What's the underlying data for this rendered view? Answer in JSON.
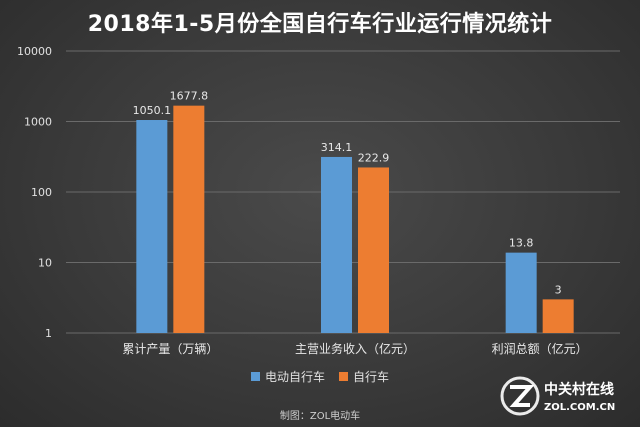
{
  "chart_data": {
    "type": "bar",
    "title": "2018年1-5月份全国自行车行业运行情况统计",
    "categories": [
      "累计产量（万辆）",
      "主营业务收入（亿元）",
      "利润总额（亿元）"
    ],
    "series": [
      {
        "name": "电动自行车",
        "values": [
          1050.1,
          314.1,
          13.8
        ],
        "color": "#5b9bd5"
      },
      {
        "name": "自行车",
        "values": [
          1677.8,
          222.9,
          3
        ],
        "color": "#ed7d31"
      }
    ],
    "y_scale": "log",
    "ylim": [
      1,
      10000
    ],
    "y_ticks": [
      "1",
      "10",
      "100",
      "1000",
      "10000"
    ],
    "grid": true,
    "legend_position": "bottom",
    "data_labels": [
      "1050.1",
      "1677.8",
      "314.1",
      "222.9",
      "13.8",
      "3"
    ]
  },
  "credit": "制图：ZOL电动车",
  "watermark": {
    "text": "中关村在线",
    "url": "ZOL.COM.CN"
  }
}
